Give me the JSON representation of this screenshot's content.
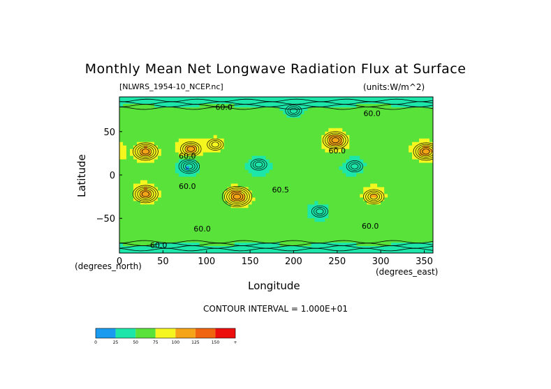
{
  "chart_data": {
    "type": "heatmap",
    "title": "Monthly Mean Net Longwave Radiation Flux at Surface",
    "source_label": "[NLWRS_1954-10_NCEP.nc]",
    "units_label": "(units:W/m^2)",
    "xlabel": "Longitude",
    "ylabel": "Latitude",
    "x_units": "(degrees_east)",
    "y_units": "(degrees_north)",
    "xlim": [
      0,
      360
    ],
    "ylim": [
      -90,
      90
    ],
    "x_ticks": [
      0,
      50,
      100,
      150,
      200,
      250,
      300,
      350
    ],
    "y_ticks": [
      50,
      0,
      -50
    ],
    "y_tick_labels": [
      "50",
      "0",
      "−50"
    ],
    "contour_interval_text": "CONTOUR INTERVAL = 1.000E+01",
    "contour_labels": [
      {
        "text": "60.0",
        "lon": 120,
        "lat": 75
      },
      {
        "text": "60.0",
        "lon": 290,
        "lat": 68
      },
      {
        "text": "60.0",
        "lon": 78,
        "lat": 19
      },
      {
        "text": "60.0",
        "lon": 250,
        "lat": 25
      },
      {
        "text": "60.0",
        "lon": 78,
        "lat": -16
      },
      {
        "text": "60.5",
        "lon": 185,
        "lat": -20
      },
      {
        "text": "60.0",
        "lon": 288,
        "lat": -62
      },
      {
        "text": "60.0",
        "lon": 95,
        "lat": -65
      },
      {
        "text": "60.0",
        "lon": 45,
        "lat": -84
      }
    ],
    "colorbar": {
      "ticks": [
        "0",
        "25",
        "50",
        "75",
        "100",
        "125",
        "150",
        "+"
      ],
      "colors": [
        "#1a9bf0",
        "#1de6aa",
        "#58e23a",
        "#f5f51f",
        "#f6a417",
        "#f0640f",
        "#ec0d0d"
      ]
    },
    "features": [
      {
        "lon": 30,
        "lat": 27,
        "value": 115
      },
      {
        "lon": 82,
        "lat": 30,
        "value": 105
      },
      {
        "lon": 110,
        "lat": 35,
        "value": 95
      },
      {
        "lon": 30,
        "lat": -22,
        "value": 115
      },
      {
        "lon": 135,
        "lat": -25,
        "value": 118
      },
      {
        "lon": 248,
        "lat": 40,
        "value": 115
      },
      {
        "lon": 352,
        "lat": 27,
        "value": 110
      },
      {
        "lon": 292,
        "lat": -25,
        "value": 105
      },
      {
        "lon": 80,
        "lat": 10,
        "value": 25
      },
      {
        "lon": 160,
        "lat": 12,
        "value": 30
      },
      {
        "lon": 270,
        "lat": 10,
        "value": 30
      },
      {
        "lon": 230,
        "lat": -42,
        "value": 30
      },
      {
        "lon": 200,
        "lat": 74,
        "value": 30
      }
    ]
  }
}
